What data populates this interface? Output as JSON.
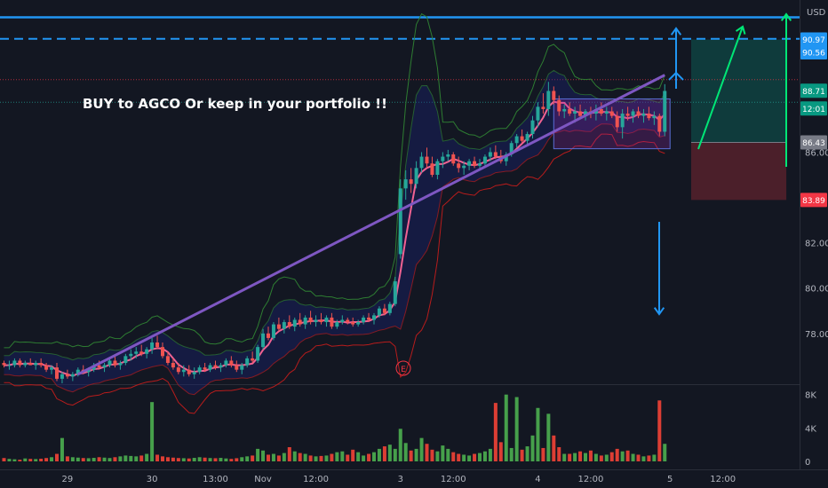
{
  "chart_data": {
    "type": "candlestick",
    "annotation": "BUY to AGCO Or keep in your portfolio !!",
    "currency": "USD",
    "price_axis": {
      "ylim": [
        75.8,
        92.4
      ],
      "ticks": [
        {
          "value": 78,
          "label": "78.00"
        },
        {
          "value": 80,
          "label": "80.00"
        },
        {
          "value": 82,
          "label": "82.00"
        },
        {
          "value": 86,
          "label": "86.00"
        }
      ]
    },
    "volume_axis": {
      "ylim": [
        0,
        8500
      ],
      "ticks": [
        {
          "value": 8000,
          "label": "8K"
        },
        {
          "value": 4000,
          "label": "4K"
        },
        {
          "value": 0,
          "label": "0"
        }
      ]
    },
    "time_axis": {
      "ticks": [
        {
          "label": "29",
          "bar": 12
        },
        {
          "label": "30",
          "bar": 28
        },
        {
          "label": "13:00",
          "bar": 40
        },
        {
          "label": "Nov",
          "bar": 49
        },
        {
          "label": "12:00",
          "bar": 59
        },
        {
          "label": "3",
          "bar": 75
        },
        {
          "label": "12:00",
          "bar": 85
        },
        {
          "label": "4",
          "bar": 101
        },
        {
          "label": "12:00",
          "bar": 111
        },
        {
          "label": "5",
          "bar": 126
        },
        {
          "label": "12:00",
          "bar": 136
        }
      ]
    },
    "price_labels": [
      {
        "value": 90.97,
        "label": "90.97",
        "color": "#2196f3"
      },
      {
        "value": 90.56,
        "label": "90.56",
        "color": "#2196f3"
      },
      {
        "value": 88.71,
        "label": "88.71",
        "color": "#089981"
      },
      {
        "value": 88.3,
        "label": "12:01",
        "color": "#089981"
      },
      {
        "value": 86.43,
        "label": "86.43",
        "color": "#787b86"
      },
      {
        "value": 83.89,
        "label": "83.89",
        "color": "#f23645"
      }
    ],
    "levels": [
      {
        "value": 91.95,
        "style": "solid",
        "color": "#2196f3"
      },
      {
        "value": 91.0,
        "style": "dashed",
        "color": "#2196f3"
      },
      {
        "value": 89.2,
        "style": "dotted",
        "color": "#f23645"
      },
      {
        "value": 88.2,
        "style": "dotted",
        "color": "#26a69a"
      }
    ],
    "position": {
      "entry": 86.43,
      "target": 90.97,
      "stop": 83.89,
      "start_bar": 130,
      "end_bar": 148
    },
    "candles": [
      [
        0,
        76.7,
        76.8,
        76.5,
        76.6
      ],
      [
        1,
        76.6,
        76.8,
        76.4,
        76.6
      ],
      [
        2,
        76.6,
        76.9,
        76.5,
        76.8
      ],
      [
        3,
        76.8,
        76.9,
        76.5,
        76.6
      ],
      [
        4,
        76.6,
        76.8,
        76.5,
        76.7
      ],
      [
        5,
        76.7,
        76.9,
        76.6,
        76.6
      ],
      [
        6,
        76.6,
        76.8,
        76.4,
        76.7
      ],
      [
        7,
        76.7,
        76.9,
        76.5,
        76.6
      ],
      [
        8,
        76.6,
        76.7,
        76.3,
        76.4
      ],
      [
        9,
        76.4,
        76.6,
        76.2,
        76.5
      ],
      [
        10,
        76.5,
        76.7,
        75.9,
        76.0
      ],
      [
        11,
        76.0,
        76.3,
        75.8,
        76.2
      ],
      [
        12,
        76.2,
        76.4,
        76.0,
        76.1
      ],
      [
        13,
        76.1,
        76.3,
        75.9,
        76.2
      ],
      [
        14,
        76.2,
        76.5,
        76.1,
        76.4
      ],
      [
        15,
        76.4,
        76.6,
        76.2,
        76.3
      ],
      [
        16,
        76.3,
        76.5,
        76.1,
        76.4
      ],
      [
        17,
        76.4,
        76.7,
        76.3,
        76.6
      ],
      [
        18,
        76.6,
        76.8,
        76.4,
        76.5
      ],
      [
        19,
        76.5,
        76.7,
        76.3,
        76.6
      ],
      [
        20,
        76.6,
        76.9,
        76.5,
        76.8
      ],
      [
        21,
        76.8,
        77.0,
        76.5,
        76.6
      ],
      [
        22,
        76.6,
        76.8,
        76.4,
        76.7
      ],
      [
        23,
        76.7,
        77.1,
        76.6,
        77.0
      ],
      [
        24,
        77.0,
        77.3,
        76.8,
        77.1
      ],
      [
        25,
        77.1,
        77.4,
        76.9,
        77.2
      ],
      [
        26,
        77.2,
        77.5,
        77.0,
        77.1
      ],
      [
        27,
        77.1,
        77.4,
        76.9,
        77.3
      ],
      [
        28,
        77.3,
        77.8,
        77.1,
        77.6
      ],
      [
        29,
        77.6,
        77.9,
        77.3,
        77.4
      ],
      [
        30,
        77.4,
        77.6,
        76.9,
        77.0
      ],
      [
        31,
        77.0,
        77.2,
        76.6,
        76.7
      ],
      [
        32,
        76.7,
        76.9,
        76.4,
        76.5
      ],
      [
        33,
        76.5,
        76.7,
        76.2,
        76.3
      ],
      [
        34,
        76.3,
        76.6,
        76.1,
        76.4
      ],
      [
        35,
        76.4,
        76.6,
        76.1,
        76.2
      ],
      [
        36,
        76.2,
        76.5,
        76.0,
        76.3
      ],
      [
        37,
        76.3,
        76.6,
        76.2,
        76.5
      ],
      [
        38,
        76.5,
        76.7,
        76.3,
        76.4
      ],
      [
        39,
        76.4,
        76.7,
        76.3,
        76.6
      ],
      [
        40,
        76.6,
        76.8,
        76.4,
        76.5
      ],
      [
        41,
        76.5,
        76.7,
        76.3,
        76.6
      ],
      [
        42,
        76.6,
        76.9,
        76.5,
        76.8
      ],
      [
        43,
        76.8,
        77.0,
        76.5,
        76.6
      ],
      [
        44,
        76.6,
        76.8,
        76.3,
        76.4
      ],
      [
        45,
        76.4,
        76.7,
        76.2,
        76.6
      ],
      [
        46,
        76.6,
        77.0,
        76.5,
        76.9
      ],
      [
        47,
        76.9,
        77.2,
        76.7,
        76.8
      ],
      [
        48,
        76.8,
        77.5,
        76.7,
        77.4
      ],
      [
        49,
        77.4,
        78.2,
        77.3,
        78.0
      ],
      [
        50,
        78.0,
        78.3,
        77.7,
        77.8
      ],
      [
        51,
        77.8,
        78.5,
        77.7,
        78.4
      ],
      [
        52,
        78.4,
        78.7,
        78.1,
        78.2
      ],
      [
        53,
        78.2,
        78.6,
        78.0,
        78.5
      ],
      [
        54,
        78.5,
        78.8,
        78.2,
        78.3
      ],
      [
        55,
        78.3,
        78.7,
        78.1,
        78.6
      ],
      [
        56,
        78.6,
        78.9,
        78.3,
        78.4
      ],
      [
        57,
        78.4,
        78.8,
        78.2,
        78.7
      ],
      [
        58,
        78.7,
        79.0,
        78.4,
        78.5
      ],
      [
        59,
        78.5,
        78.8,
        78.3,
        78.6
      ],
      [
        60,
        78.6,
        78.9,
        78.4,
        78.5
      ],
      [
        61,
        78.5,
        78.8,
        78.3,
        78.7
      ],
      [
        62,
        78.7,
        78.9,
        78.2,
        78.3
      ],
      [
        63,
        78.3,
        78.6,
        78.2,
        78.5
      ],
      [
        64,
        78.5,
        78.8,
        78.4,
        78.6
      ],
      [
        65,
        78.6,
        78.7,
        78.4,
        78.5
      ],
      [
        66,
        78.5,
        78.7,
        78.3,
        78.4
      ],
      [
        67,
        78.4,
        78.6,
        78.3,
        78.5
      ],
      [
        68,
        78.5,
        78.8,
        78.4,
        78.7
      ],
      [
        69,
        78.7,
        78.9,
        78.5,
        78.6
      ],
      [
        70,
        78.6,
        78.9,
        78.4,
        78.8
      ],
      [
        71,
        78.8,
        79.2,
        78.7,
        79.1
      ],
      [
        72,
        79.1,
        79.3,
        78.8,
        78.9
      ],
      [
        73,
        78.9,
        79.4,
        78.8,
        79.3
      ],
      [
        74,
        79.3,
        80.5,
        79.2,
        80.3
      ],
      [
        75,
        81.5,
        84.8,
        81.3,
        84.4
      ],
      [
        76,
        84.4,
        85.2,
        83.9,
        84.8
      ],
      [
        77,
        84.8,
        85.3,
        84.2,
        84.6
      ],
      [
        78,
        84.6,
        85.6,
        84.4,
        85.3
      ],
      [
        79,
        85.3,
        86.0,
        85.1,
        85.8
      ],
      [
        80,
        85.8,
        86.2,
        85.3,
        85.5
      ],
      [
        81,
        85.5,
        85.8,
        84.9,
        85.0
      ],
      [
        82,
        85.0,
        85.7,
        84.8,
        85.6
      ],
      [
        83,
        85.6,
        86.0,
        85.3,
        85.8
      ],
      [
        84,
        85.8,
        86.1,
        85.6,
        85.9
      ],
      [
        85,
        85.9,
        86.0,
        85.4,
        85.5
      ],
      [
        86,
        85.5,
        85.8,
        85.1,
        85.3
      ],
      [
        87,
        85.3,
        85.6,
        85.0,
        85.4
      ],
      [
        88,
        85.4,
        85.7,
        85.2,
        85.6
      ],
      [
        89,
        85.6,
        85.8,
        85.3,
        85.4
      ],
      [
        90,
        85.4,
        85.7,
        85.2,
        85.5
      ],
      [
        91,
        85.5,
        85.9,
        85.3,
        85.8
      ],
      [
        92,
        85.8,
        86.2,
        85.6,
        86.0
      ],
      [
        93,
        86.0,
        86.3,
        85.7,
        85.8
      ],
      [
        94,
        85.8,
        86.1,
        85.5,
        85.6
      ],
      [
        95,
        85.6,
        86.0,
        85.4,
        85.9
      ],
      [
        96,
        85.9,
        86.5,
        85.8,
        86.4
      ],
      [
        97,
        86.4,
        86.8,
        86.2,
        86.7
      ],
      [
        98,
        86.7,
        87.0,
        86.4,
        86.5
      ],
      [
        99,
        86.5,
        86.9,
        86.3,
        86.8
      ],
      [
        100,
        86.8,
        87.6,
        86.6,
        87.4
      ],
      [
        101,
        87.4,
        88.2,
        87.1,
        88.0
      ],
      [
        102,
        88.0,
        88.6,
        87.7,
        87.9
      ],
      [
        103,
        87.9,
        89.1,
        87.6,
        88.7
      ],
      [
        104,
        88.7,
        88.9,
        88.1,
        88.3
      ],
      [
        105,
        88.3,
        88.5,
        87.6,
        87.8
      ],
      [
        106,
        87.8,
        88.1,
        87.5,
        87.9
      ],
      [
        107,
        87.9,
        88.2,
        87.6,
        87.7
      ],
      [
        108,
        87.7,
        88.0,
        87.3,
        87.8
      ],
      [
        109,
        87.8,
        88.1,
        87.5,
        87.6
      ],
      [
        110,
        87.6,
        87.9,
        87.4,
        87.8
      ],
      [
        111,
        87.8,
        88.0,
        87.5,
        87.7
      ],
      [
        112,
        87.7,
        88.1,
        87.4,
        87.9
      ],
      [
        113,
        87.9,
        88.2,
        87.6,
        87.7
      ],
      [
        114,
        87.7,
        88.0,
        87.4,
        87.8
      ],
      [
        115,
        87.8,
        88.0,
        87.5,
        87.6
      ],
      [
        116,
        87.6,
        87.8,
        86.9,
        87.1
      ],
      [
        117,
        87.1,
        87.9,
        86.6,
        87.7
      ],
      [
        118,
        87.7,
        88.0,
        87.4,
        87.6
      ],
      [
        119,
        87.6,
        87.9,
        87.3,
        87.8
      ],
      [
        120,
        87.8,
        88.0,
        87.5,
        87.6
      ],
      [
        121,
        87.6,
        87.9,
        87.3,
        87.7
      ],
      [
        122,
        87.7,
        88.0,
        87.4,
        87.5
      ],
      [
        123,
        87.5,
        87.8,
        87.2,
        87.6
      ],
      [
        124,
        87.6,
        87.7,
        86.7,
        86.9
      ],
      [
        125,
        86.9,
        89.0,
        86.7,
        88.7
      ]
    ],
    "volume": [
      [
        0,
        400
      ],
      [
        1,
        300
      ],
      [
        2,
        250
      ],
      [
        3,
        200
      ],
      [
        4,
        350
      ],
      [
        5,
        300
      ],
      [
        6,
        280
      ],
      [
        7,
        320
      ],
      [
        8,
        400
      ],
      [
        9,
        500
      ],
      [
        10,
        900
      ],
      [
        11,
        2800
      ],
      [
        12,
        600
      ],
      [
        13,
        500
      ],
      [
        14,
        450
      ],
      [
        15,
        400
      ],
      [
        16,
        380
      ],
      [
        17,
        420
      ],
      [
        18,
        500
      ],
      [
        19,
        450
      ],
      [
        20,
        400
      ],
      [
        21,
        500
      ],
      [
        22,
        600
      ],
      [
        23,
        700
      ],
      [
        24,
        650
      ],
      [
        25,
        600
      ],
      [
        26,
        700
      ],
      [
        27,
        900
      ],
      [
        28,
        7100
      ],
      [
        29,
        800
      ],
      [
        30,
        600
      ],
      [
        31,
        500
      ],
      [
        32,
        450
      ],
      [
        33,
        400
      ],
      [
        34,
        380
      ],
      [
        35,
        350
      ],
      [
        36,
        420
      ],
      [
        37,
        500
      ],
      [
        38,
        450
      ],
      [
        39,
        400
      ],
      [
        40,
        380
      ],
      [
        41,
        420
      ],
      [
        42,
        350
      ],
      [
        43,
        300
      ],
      [
        44,
        380
      ],
      [
        45,
        500
      ],
      [
        46,
        600
      ],
      [
        47,
        700
      ],
      [
        48,
        1500
      ],
      [
        49,
        1300
      ],
      [
        50,
        800
      ],
      [
        51,
        900
      ],
      [
        52,
        700
      ],
      [
        53,
        1000
      ],
      [
        54,
        1700
      ],
      [
        55,
        1200
      ],
      [
        56,
        1000
      ],
      [
        57,
        900
      ],
      [
        58,
        700
      ],
      [
        59,
        600
      ],
      [
        60,
        650
      ],
      [
        61,
        700
      ],
      [
        62,
        900
      ],
      [
        63,
        1100
      ],
      [
        64,
        1200
      ],
      [
        65,
        800
      ],
      [
        66,
        1400
      ],
      [
        67,
        1100
      ],
      [
        68,
        700
      ],
      [
        69,
        900
      ],
      [
        70,
        1100
      ],
      [
        71,
        1500
      ],
      [
        72,
        1800
      ],
      [
        73,
        2000
      ],
      [
        74,
        1500
      ],
      [
        75,
        3900
      ],
      [
        76,
        2200
      ],
      [
        77,
        1300
      ],
      [
        78,
        1500
      ],
      [
        79,
        2800
      ],
      [
        80,
        2100
      ],
      [
        81,
        1400
      ],
      [
        82,
        1200
      ],
      [
        83,
        1900
      ],
      [
        84,
        1500
      ],
      [
        85,
        1100
      ],
      [
        86,
        900
      ],
      [
        87,
        800
      ],
      [
        88,
        700
      ],
      [
        89,
        900
      ],
      [
        90,
        1000
      ],
      [
        91,
        1200
      ],
      [
        92,
        1500
      ],
      [
        93,
        7000
      ],
      [
        94,
        2300
      ],
      [
        95,
        8000
      ],
      [
        96,
        1600
      ],
      [
        97,
        7700
      ],
      [
        98,
        1400
      ],
      [
        99,
        1800
      ],
      [
        100,
        3100
      ],
      [
        101,
        6400
      ],
      [
        102,
        1600
      ],
      [
        103,
        5700
      ],
      [
        104,
        3100
      ],
      [
        105,
        1700
      ],
      [
        106,
        900
      ],
      [
        107,
        900
      ],
      [
        108,
        1000
      ],
      [
        109,
        1200
      ],
      [
        110,
        1000
      ],
      [
        111,
        1300
      ],
      [
        112,
        900
      ],
      [
        113,
        700
      ],
      [
        114,
        800
      ],
      [
        115,
        1100
      ],
      [
        116,
        1500
      ],
      [
        117,
        1200
      ],
      [
        118,
        1300
      ],
      [
        119,
        900
      ],
      [
        120,
        800
      ],
      [
        121,
        600
      ],
      [
        122,
        700
      ],
      [
        123,
        800
      ],
      [
        124,
        7300
      ],
      [
        125,
        2100
      ]
    ],
    "trendline": {
      "from": [
        14,
        76.2
      ],
      "to": [
        125,
        89.4
      ],
      "color": "#7e57c2"
    },
    "colors": {
      "up": "#26a69a",
      "down": "#ef5350",
      "vol_up": "#4caf50",
      "vol_down": "#f44336",
      "vwap": "#f06292",
      "band_outer": "#b71c1c",
      "band_inner": "#2e7d32",
      "band_fill": "#1a237e"
    }
  }
}
